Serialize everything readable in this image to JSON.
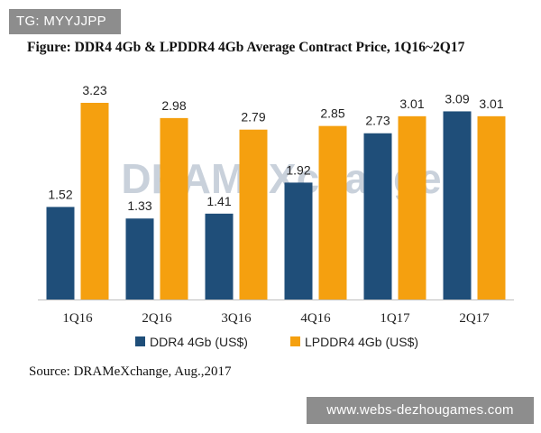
{
  "overlay": {
    "tag_text": "TG: MYYJJPP",
    "site_text": "www.webs-dezhougames.com"
  },
  "figure": {
    "title": "Figure: DDR4 4Gb & LPDDR4 4Gb Average Contract Price, 1Q16~2Q17",
    "source": "Source: DRAMeXchange, Aug.,2017",
    "watermark": "DRAMeXchange"
  },
  "colors": {
    "ddr4": "#1f4e79",
    "lpddr4": "#f5a00f",
    "watermark": "#b8c2d0"
  },
  "chart_data": {
    "type": "bar",
    "title": "Figure: DDR4 4Gb & LPDDR4 4Gb Average Contract Price, 1Q16~2Q17",
    "xlabel": "",
    "ylabel": "",
    "categories": [
      "1Q16",
      "2Q16",
      "3Q16",
      "4Q16",
      "1Q17",
      "2Q17"
    ],
    "series": [
      {
        "name": "DDR4 4Gb (US$)",
        "values": [
          1.52,
          1.33,
          1.41,
          1.92,
          2.73,
          3.09
        ]
      },
      {
        "name": "LPDDR4 4Gb (US$)",
        "values": [
          3.23,
          2.98,
          2.79,
          2.85,
          3.01,
          3.01
        ]
      }
    ],
    "ylim": [
      0,
      3.3
    ],
    "grid": false,
    "legend": "bottom",
    "data_labels": true
  }
}
